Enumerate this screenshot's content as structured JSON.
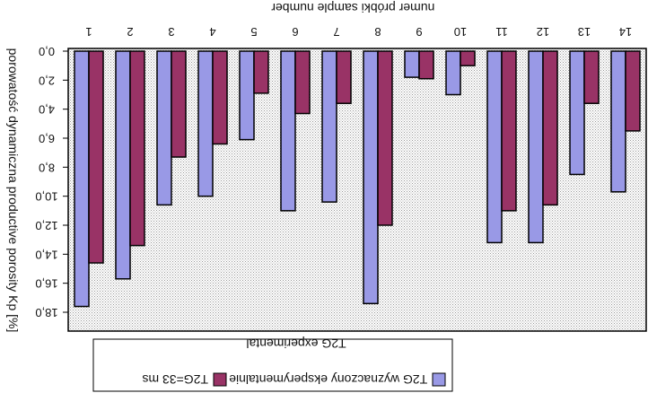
{
  "chart_data": {
    "type": "bar",
    "orientation": "rotated-180",
    "ylabel": "porowatość dynamiczna  productive porosity  Kp [%]",
    "xlabel": "numer próbki  sample number",
    "categories": [
      "1",
      "2",
      "3",
      "4",
      "5",
      "6",
      "7",
      "8",
      "9",
      "10",
      "11",
      "12",
      "13",
      "14"
    ],
    "ytick_labels": [
      "0,0",
      "2,0",
      "4,0",
      "6,0",
      "8,0",
      "10,0",
      "12,0",
      "14,0",
      "16,0",
      "18,0"
    ],
    "ylim": [
      0,
      18
    ],
    "grid": false,
    "legend_placement": "bottom",
    "legend_title": "T2G experimental",
    "series": [
      {
        "name": "T2G wyznaczony eksperymentalnie",
        "color": "#9999e6",
        "values": [
          17.6,
          15.7,
          10.6,
          10.0,
          6.1,
          11.0,
          10.4,
          17.4,
          1.8,
          3.0,
          13.2,
          13.2,
          8.5,
          9.7
        ]
      },
      {
        "name": "T2G=33 ms",
        "color": "#993366",
        "values": [
          14.6,
          13.4,
          7.3,
          6.4,
          2.9,
          4.3,
          3.6,
          12.0,
          1.9,
          1.0,
          11.0,
          10.6,
          3.6,
          5.5
        ]
      }
    ]
  }
}
